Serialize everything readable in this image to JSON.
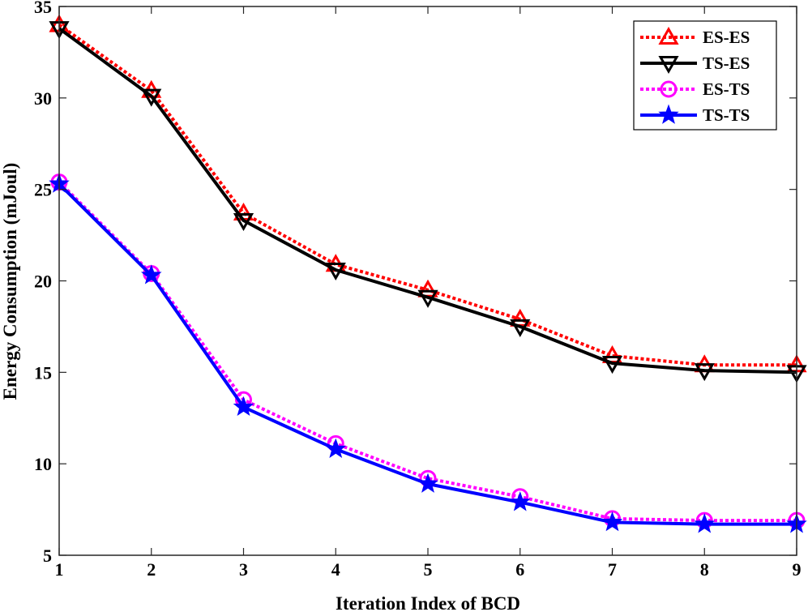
{
  "chart_data": {
    "type": "line",
    "title": "",
    "xlabel": "Iteration Index of BCD",
    "ylabel": "Energy Consumption (mJoul)",
    "x": [
      1,
      2,
      3,
      4,
      5,
      6,
      7,
      8,
      9
    ],
    "xlim": [
      1,
      9
    ],
    "ylim": [
      5,
      35
    ],
    "xticks": [
      1,
      2,
      3,
      4,
      5,
      6,
      7,
      8,
      9
    ],
    "yticks": [
      5,
      10,
      15,
      20,
      25,
      30,
      35
    ],
    "grid": false,
    "legend_position": "top-right",
    "series": [
      {
        "name": "ES-ES",
        "values": [
          34.0,
          30.4,
          23.7,
          20.9,
          19.5,
          17.9,
          15.9,
          15.4,
          15.4
        ],
        "color": "#ff0000",
        "line_style": "dotted",
        "marker": "triangle-up"
      },
      {
        "name": "TS-ES",
        "values": [
          33.8,
          30.1,
          23.3,
          20.6,
          19.1,
          17.5,
          15.5,
          15.1,
          15.0
        ],
        "color": "#000000",
        "line_style": "solid",
        "marker": "triangle-down"
      },
      {
        "name": "ES-TS",
        "values": [
          25.4,
          20.4,
          13.5,
          11.1,
          9.2,
          8.2,
          7.0,
          6.9,
          6.9
        ],
        "color": "#ff00ff",
        "line_style": "dotted",
        "marker": "circle"
      },
      {
        "name": "TS-TS",
        "values": [
          25.3,
          20.3,
          13.1,
          10.8,
          8.9,
          7.9,
          6.8,
          6.7,
          6.7
        ],
        "color": "#0000ff",
        "line_style": "solid",
        "marker": "star"
      }
    ]
  }
}
